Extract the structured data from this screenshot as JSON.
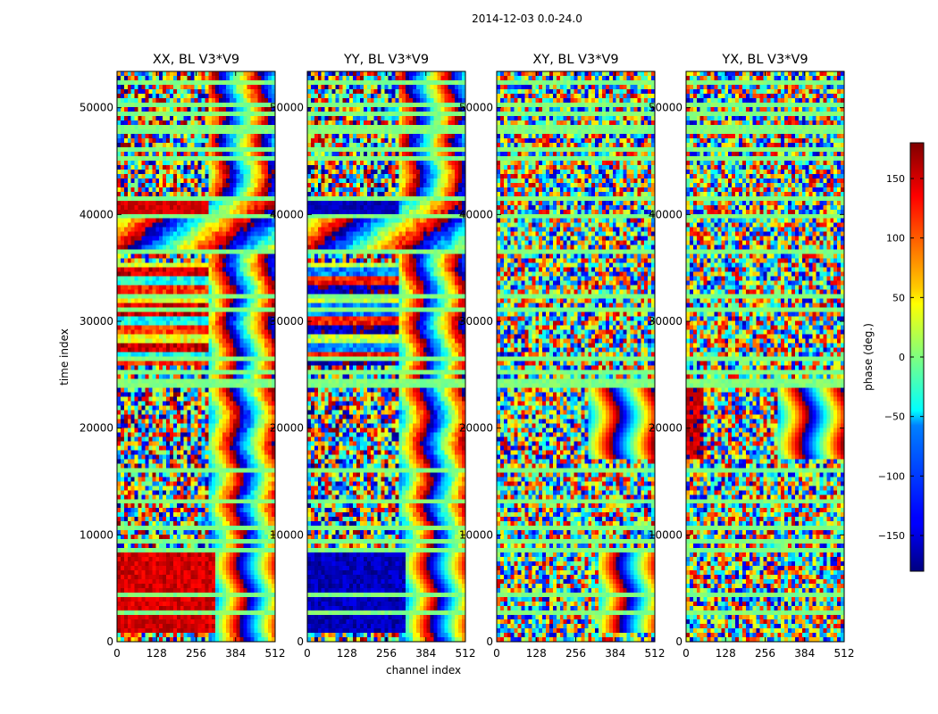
{
  "chart_data": {
    "type": "heatmap",
    "suptitle": "2014-12-03 0.0-24.0",
    "xlabel": "channel index",
    "ylabel": "time index",
    "colorbar_label": "phase (deg.)",
    "colormap": "jet",
    "panels": [
      {
        "title": "XX, BL V3*V9",
        "pattern": "xx"
      },
      {
        "title": "YY, BL V3*V9",
        "pattern": "yy"
      },
      {
        "title": "XY, BL V3*V9",
        "pattern": "xy"
      },
      {
        "title": "YX, BL V3*V9",
        "pattern": "yx"
      }
    ],
    "x_ticks": [
      0,
      128,
      256,
      384,
      512
    ],
    "x_range": [
      0,
      512
    ],
    "y_ticks": [
      0,
      10000,
      20000,
      30000,
      40000,
      50000
    ],
    "y_range": [
      0,
      53400
    ],
    "colorbar_ticks": [
      150,
      100,
      50,
      0,
      -50,
      -100,
      -150
    ],
    "colorbar_range": [
      -180,
      180
    ]
  },
  "colors": {
    "jet_dark_blue": "#00007f",
    "jet_blue": "#0000ff",
    "jet_cyan": "#00ffff",
    "jet_green": "#7fff7f",
    "jet_yellow": "#ffff00",
    "jet_red": "#ff0000",
    "jet_dark_red": "#7f0000"
  }
}
